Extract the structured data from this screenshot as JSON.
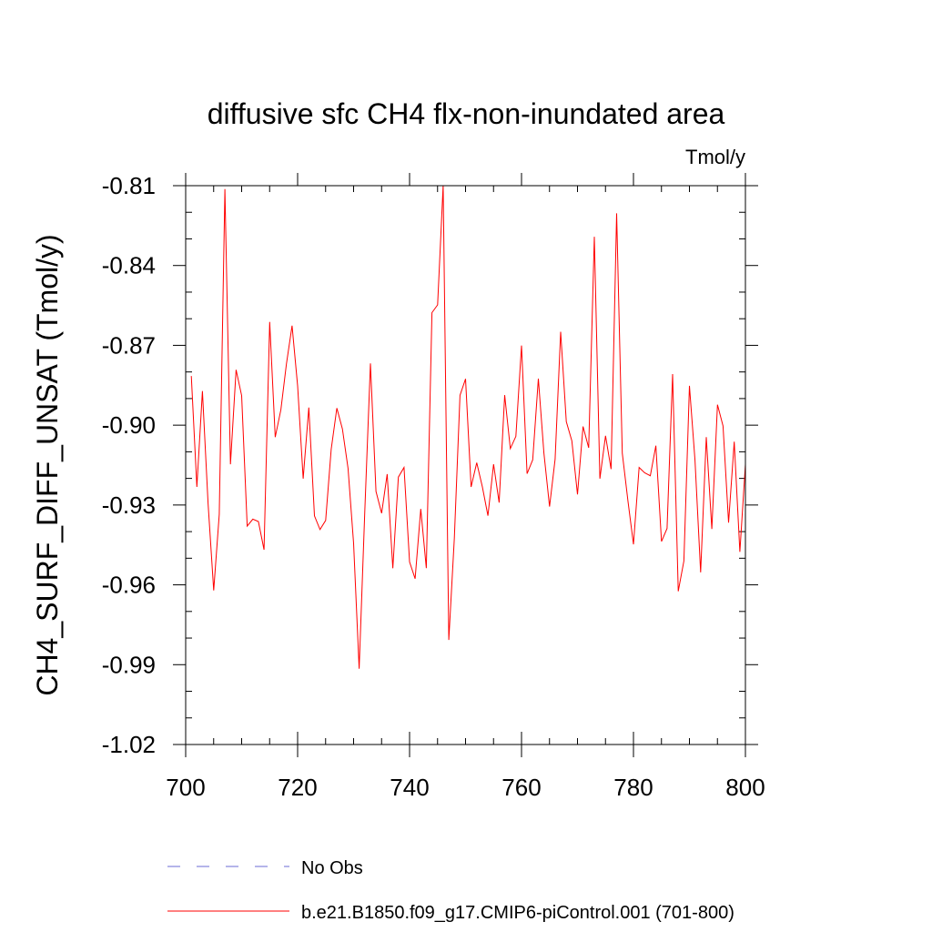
{
  "chart_data": {
    "type": "line",
    "title": "diffusive sfc CH4 flx-non-inundated area",
    "units": "Tmol/y",
    "ylabel": "CH4_SURF_DIFF_UNSAT  (Tmol/y)",
    "xlabel": "",
    "xlim": [
      700,
      800
    ],
    "ylim": [
      -1.02,
      -0.805
    ],
    "xticks": [
      700,
      720,
      740,
      760,
      780,
      800
    ],
    "xtick_labels": [
      "700",
      "720",
      "740",
      "760",
      "780",
      "800"
    ],
    "yticks": [
      -1.02,
      -0.99,
      -0.96,
      -0.93,
      -0.9,
      -0.87,
      -0.84,
      -0.81
    ],
    "ytick_labels": [
      "-1.02",
      "-0.99",
      "-0.96",
      "-0.93",
      "-0.90",
      "-0.87",
      "-0.84",
      "-0.81"
    ],
    "series": [
      {
        "name": "b.e21.B1850.f09_g17.CMIP6-piControl.001 (701-800)",
        "color": "#ff0000",
        "x": [
          701,
          702,
          703,
          704,
          705,
          706,
          707,
          708,
          709,
          710,
          711,
          712,
          713,
          714,
          715,
          716,
          717,
          718,
          719,
          720,
          721,
          722,
          723,
          724,
          725,
          726,
          727,
          728,
          729,
          730,
          731,
          732,
          733,
          734,
          735,
          736,
          737,
          738,
          739,
          740,
          741,
          742,
          743,
          744,
          745,
          746,
          747,
          748,
          749,
          750,
          751,
          752,
          753,
          754,
          755,
          756,
          757,
          758,
          759,
          760,
          761,
          762,
          763,
          764,
          765,
          766,
          767,
          768,
          769,
          770,
          771,
          772,
          773,
          774,
          775,
          776,
          777,
          778,
          779,
          780,
          781,
          782,
          783,
          784,
          785,
          786,
          787,
          788,
          789,
          790,
          791,
          792,
          793,
          794,
          795,
          796,
          797,
          798,
          799,
          800
        ],
        "values": [
          -0.8815,
          -0.9232,
          -0.8872,
          -0.9293,
          -0.9621,
          -0.9335,
          -0.8113,
          -0.9147,
          -0.8792,
          -0.8889,
          -0.9379,
          -0.9353,
          -0.9362,
          -0.9468,
          -0.8612,
          -0.9045,
          -0.8942,
          -0.877,
          -0.8626,
          -0.8852,
          -0.9201,
          -0.8934,
          -0.9341,
          -0.9392,
          -0.9358,
          -0.909,
          -0.8936,
          -0.9014,
          -0.9162,
          -0.9444,
          -0.9915,
          -0.9324,
          -0.8768,
          -0.9249,
          -0.9331,
          -0.9184,
          -0.9538,
          -0.9195,
          -0.9159,
          -0.9514,
          -0.9577,
          -0.9315,
          -0.9537,
          -0.8577,
          -0.8548,
          -0.8099,
          -0.9807,
          -0.9424,
          -0.8888,
          -0.8826,
          -0.9232,
          -0.9141,
          -0.9232,
          -0.934,
          -0.9147,
          -0.9291,
          -0.8887,
          -0.9088,
          -0.9042,
          -0.8701,
          -0.9182,
          -0.913,
          -0.8825,
          -0.9105,
          -0.9306,
          -0.9128,
          -0.8649,
          -0.8987,
          -0.9059,
          -0.926,
          -0.9005,
          -0.9085,
          -0.8292,
          -0.9201,
          -0.904,
          -0.9165,
          -0.8204,
          -0.9105,
          -0.9284,
          -0.9448,
          -0.9159,
          -0.9179,
          -0.919,
          -0.9077,
          -0.9437,
          -0.9388,
          -0.8808,
          -0.9624,
          -0.951,
          -0.8852,
          -0.9132,
          -0.9553,
          -0.9045,
          -0.939,
          -0.8923,
          -0.9003,
          -0.9366,
          -0.9062,
          -0.9476,
          -0.9147
        ]
      }
    ],
    "legend": [
      {
        "label": "No Obs",
        "color": "#6b6bd6",
        "style": "dashed"
      },
      {
        "label": "b.e21.B1850.f09_g17.CMIP6-piControl.001 (701-800)",
        "color": "#ff0000",
        "style": "solid"
      }
    ]
  }
}
